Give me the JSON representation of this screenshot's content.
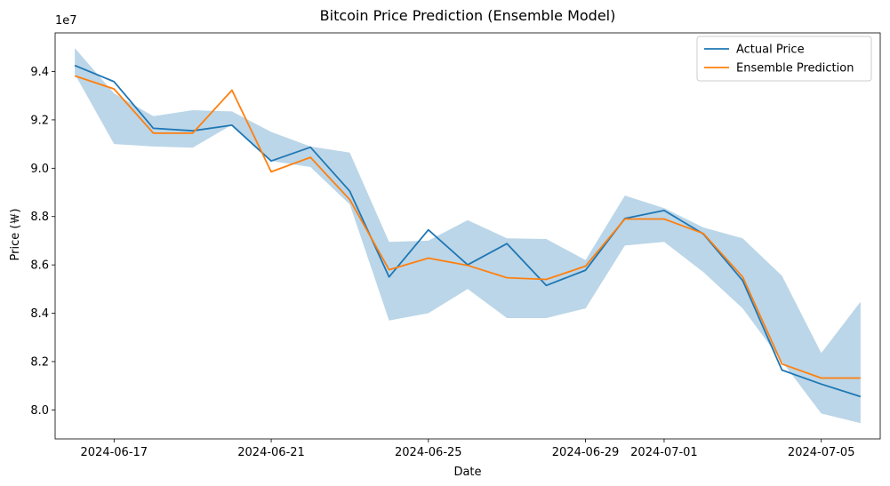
{
  "chart_data": {
    "type": "line",
    "title": "Bitcoin Price Prediction (Ensemble Model)",
    "xlabel": "Date",
    "ylabel": "Price (￦)",
    "y_offset_label": "1e7",
    "x": [
      "2024-06-16",
      "2024-06-17",
      "2024-06-18",
      "2024-06-19",
      "2024-06-20",
      "2024-06-21",
      "2024-06-22",
      "2024-06-23",
      "2024-06-24",
      "2024-06-25",
      "2024-06-26",
      "2024-06-27",
      "2024-06-28",
      "2024-06-29",
      "2024-06-30",
      "2024-07-01",
      "2024-07-02",
      "2024-07-03",
      "2024-07-04",
      "2024-07-05",
      "2024-07-06"
    ],
    "xlim": [
      "2024-06-15T12:00",
      "2024-07-06T12:00"
    ],
    "x_ticks": [
      {
        "date": "2024-06-17",
        "label": "2024-06-17"
      },
      {
        "date": "2024-06-21",
        "label": "2024-06-21"
      },
      {
        "date": "2024-06-25",
        "label": "2024-06-25"
      },
      {
        "date": "2024-06-29",
        "label": "2024-06-29"
      },
      {
        "date": "2024-07-01",
        "label": "2024-07-01"
      },
      {
        "date": "2024-07-05",
        "label": "2024-07-05"
      }
    ],
    "ylim": [
      7.88,
      9.56
    ],
    "y_ticks": [
      {
        "value": 8.0,
        "label": "8.0"
      },
      {
        "value": 8.2,
        "label": "8.2"
      },
      {
        "value": 8.4,
        "label": "8.4"
      },
      {
        "value": 8.6,
        "label": "8.6"
      },
      {
        "value": 8.8,
        "label": "8.8"
      },
      {
        "value": 9.0,
        "label": "9.0"
      },
      {
        "value": 9.2,
        "label": "9.2"
      },
      {
        "value": 9.4,
        "label": "9.4"
      }
    ],
    "series": [
      {
        "name": "Actual Price",
        "color": "#1f77b4",
        "values": [
          9.425,
          9.358,
          9.165,
          9.155,
          9.178,
          9.03,
          9.087,
          8.905,
          8.55,
          8.745,
          8.6,
          8.688,
          8.515,
          8.578,
          8.792,
          8.825,
          8.728,
          8.535,
          8.165,
          8.107,
          8.055
        ]
      },
      {
        "name": "Ensemble Prediction",
        "color": "#ff7f0e",
        "values": [
          9.382,
          9.328,
          9.145,
          9.145,
          9.323,
          8.985,
          9.045,
          8.87,
          8.58,
          8.628,
          8.598,
          8.547,
          8.54,
          8.595,
          8.79,
          8.79,
          8.73,
          8.55,
          8.19,
          8.132,
          8.132
        ]
      }
    ],
    "band": {
      "color": "#1f77b4",
      "opacity": 0.3,
      "lower": [
        9.39,
        9.1,
        9.09,
        9.085,
        9.18,
        9.03,
        9.005,
        8.85,
        8.37,
        8.4,
        8.5,
        8.38,
        8.38,
        8.42,
        8.68,
        8.695,
        8.57,
        8.42,
        8.2,
        7.985,
        7.945
      ],
      "upper": [
        9.497,
        9.31,
        9.215,
        9.24,
        9.235,
        9.15,
        9.09,
        9.065,
        8.695,
        8.7,
        8.785,
        8.71,
        8.707,
        8.62,
        8.887,
        8.835,
        8.755,
        8.71,
        8.555,
        8.235,
        8.448
      ]
    },
    "legend": {
      "position": "top-right",
      "entries": [
        "Actual Price",
        "Ensemble Prediction"
      ]
    },
    "grid": false
  }
}
